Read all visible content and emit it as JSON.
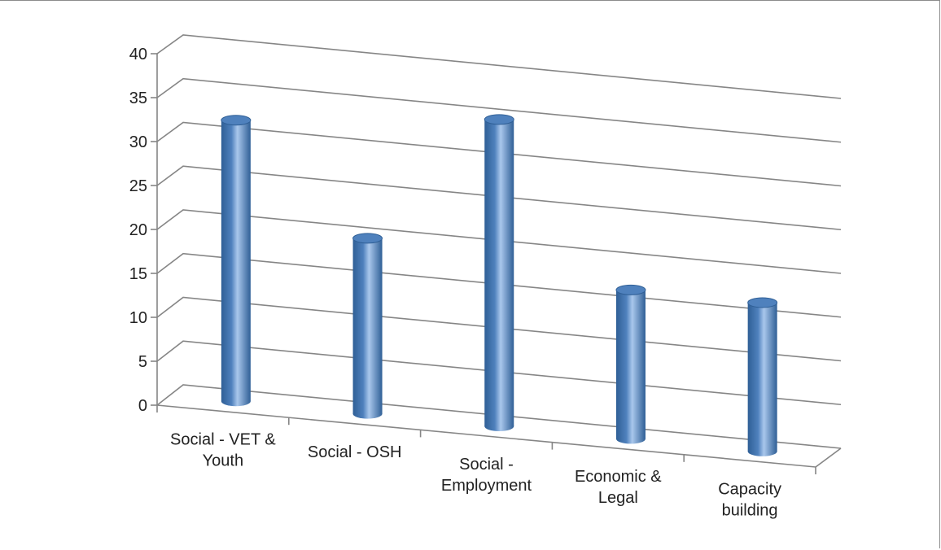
{
  "chart_data": {
    "type": "bar",
    "style": "3d-cylinder",
    "categories": [
      [
        "Social - VET &",
        "Youth"
      ],
      [
        "Social - OSH"
      ],
      [
        "Social -",
        "Employment"
      ],
      [
        "Economic &",
        "Legal"
      ],
      [
        "Capacity",
        "building"
      ]
    ],
    "values": [
      32,
      20,
      35,
      17,
      17
    ],
    "ylim": [
      0,
      40
    ],
    "yticks": [
      0,
      5,
      10,
      15,
      20,
      25,
      30,
      35,
      40
    ],
    "grid": true,
    "legend": "none",
    "colors": {
      "bar": "#4f81bd",
      "bar_light": "#a9c7ec",
      "bar_dark": "#2f5f96",
      "grid": "#868686",
      "text": "#222222"
    }
  }
}
